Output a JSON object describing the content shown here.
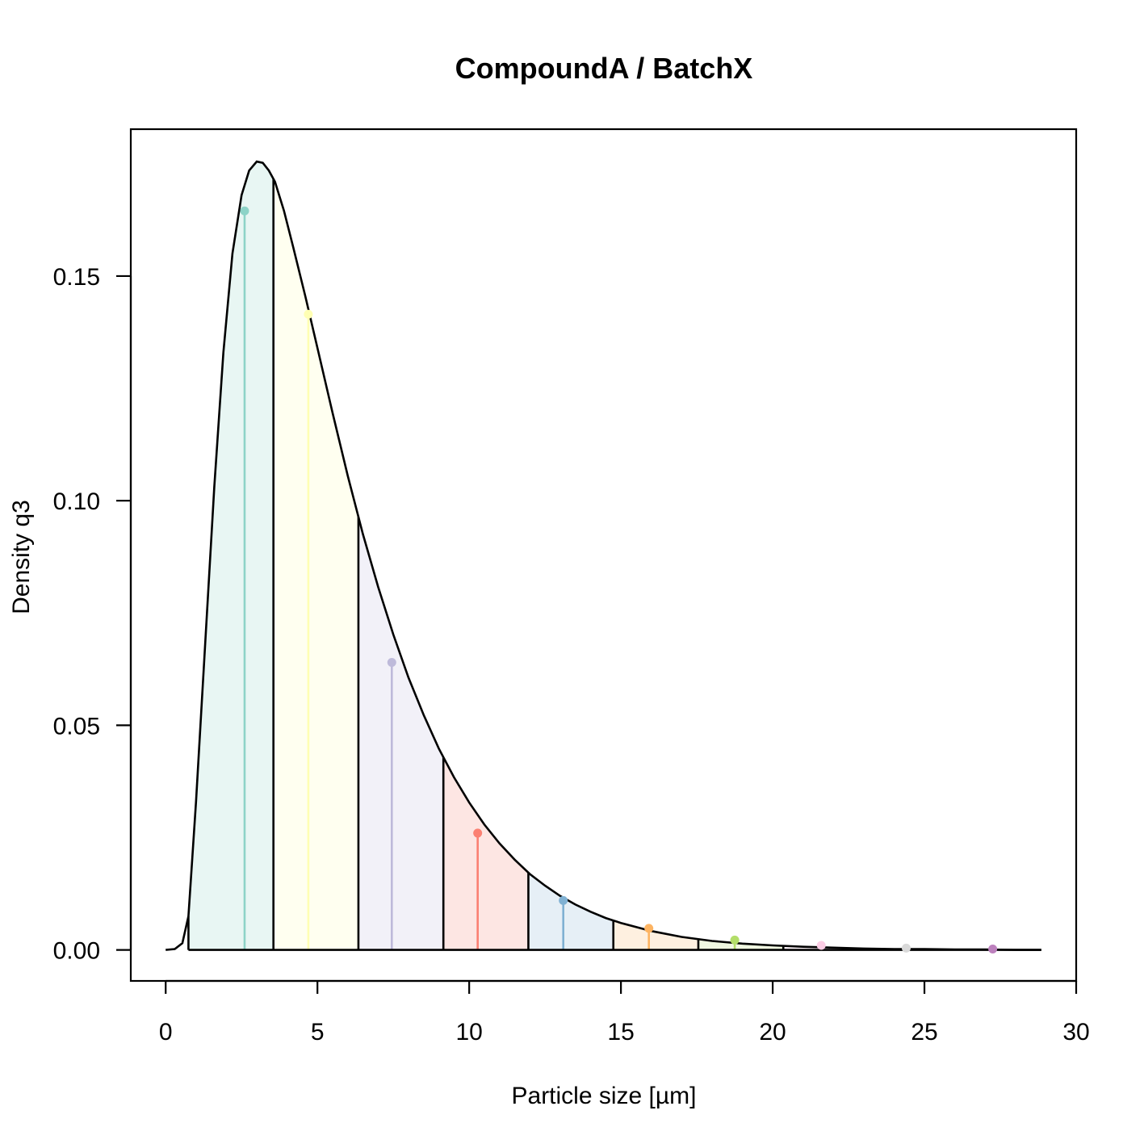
{
  "chart_data": {
    "type": "area",
    "title": "CompoundA / BatchX",
    "xlabel": "Particle size [µm]",
    "ylabel": "Density q3",
    "xlim": [
      -1.15,
      30
    ],
    "ylim": [
      -0.0069,
      0.1827
    ],
    "x_ticks": [
      0,
      5,
      10,
      15,
      20,
      25,
      30
    ],
    "x_tick_labels": [
      "0",
      "5",
      "10",
      "15",
      "20",
      "25",
      "30"
    ],
    "y_ticks": [
      0.0,
      0.05,
      0.1,
      0.15
    ],
    "y_tick_labels": [
      "0.00",
      "0.05",
      "0.10",
      "0.15"
    ],
    "grid": false,
    "legend": "none",
    "curve": {
      "x": [
        0.0,
        0.3,
        0.55,
        0.75,
        1.0,
        1.3,
        1.6,
        1.9,
        2.2,
        2.5,
        2.75,
        3.0,
        3.2,
        3.4,
        3.6,
        3.9,
        4.2,
        4.6,
        5.0,
        5.5,
        6.0,
        6.5,
        7.0,
        7.5,
        8.0,
        8.5,
        9.0,
        9.5,
        10.0,
        10.5,
        11.0,
        11.5,
        12.0,
        12.5,
        13.0,
        13.5,
        14.0,
        14.5,
        15.0,
        16.0,
        17.0,
        18.0,
        19.0,
        20.0,
        21.0,
        22.0,
        23.0,
        24.0,
        25.0,
        26.0,
        27.0,
        28.0,
        28.85
      ],
      "y": [
        0.0,
        0.0002,
        0.0015,
        0.0075,
        0.033,
        0.068,
        0.103,
        0.133,
        0.155,
        0.168,
        0.1735,
        0.1755,
        0.1752,
        0.1735,
        0.171,
        0.1645,
        0.1565,
        0.1455,
        0.134,
        0.1195,
        0.1055,
        0.0925,
        0.0808,
        0.0702,
        0.0606,
        0.0523,
        0.0448,
        0.0384,
        0.0328,
        0.0279,
        0.0237,
        0.0201,
        0.0169,
        0.0143,
        0.012,
        0.0101,
        0.0085,
        0.0071,
        0.006,
        0.0042,
        0.0029,
        0.002,
        0.0014,
        0.001,
        0.0007,
        0.0005,
        0.0003,
        0.0002,
        0.0002,
        0.0001,
        0.0001,
        0.0,
        0.0
      ]
    },
    "classes": [
      {
        "from": 0.75,
        "to": 3.55,
        "mid": 2.6,
        "color": "#8DD3C7",
        "fill": "#E8F6F3"
      },
      {
        "from": 3.55,
        "to": 6.35,
        "mid": 4.7,
        "color": "#FFFFB3",
        "fill": "#FFFFF0"
      },
      {
        "from": 6.35,
        "to": 9.15,
        "mid": 7.45,
        "color": "#BEBADA",
        "fill": "#F2F1F8"
      },
      {
        "from": 9.15,
        "to": 11.95,
        "mid": 10.28,
        "color": "#FB8072",
        "fill": "#FDE6E3"
      },
      {
        "from": 11.95,
        "to": 14.75,
        "mid": 13.1,
        "color": "#80B1D3",
        "fill": "#E6EFF6"
      },
      {
        "from": 14.75,
        "to": 17.55,
        "mid": 15.92,
        "color": "#FDB462",
        "fill": "#FEF0E0"
      },
      {
        "from": 17.55,
        "to": 20.35,
        "mid": 18.75,
        "color": "#B3DE69",
        "fill": "#F0F8E1"
      },
      {
        "from": 20.35,
        "to": 23.15,
        "mid": 21.6,
        "color": "#FCCDE5",
        "fill": "#FEF5FA"
      },
      {
        "from": 23.15,
        "to": 25.95,
        "mid": 24.4,
        "color": "#D9D9D9",
        "fill": "#F7F7F7"
      },
      {
        "from": 25.95,
        "to": 28.85,
        "mid": 27.25,
        "color": "#BC80BD",
        "fill": "#F2E6F2"
      }
    ],
    "class_boundaries": [
      3.55,
      6.35,
      9.15,
      11.95,
      14.75,
      17.55,
      20.35,
      23.15,
      25.95
    ],
    "class_mid_values": [
      {
        "x": 2.6,
        "y": 0.1645
      },
      {
        "x": 4.7,
        "y": 0.1415
      },
      {
        "x": 7.45,
        "y": 0.064
      },
      {
        "x": 10.28,
        "y": 0.026
      },
      {
        "x": 13.1,
        "y": 0.011
      },
      {
        "x": 15.92,
        "y": 0.0048
      },
      {
        "x": 18.75,
        "y": 0.0022
      },
      {
        "x": 21.6,
        "y": 0.001
      },
      {
        "x": 24.4,
        "y": 0.0004
      },
      {
        "x": 27.25,
        "y": 0.0002
      }
    ]
  }
}
